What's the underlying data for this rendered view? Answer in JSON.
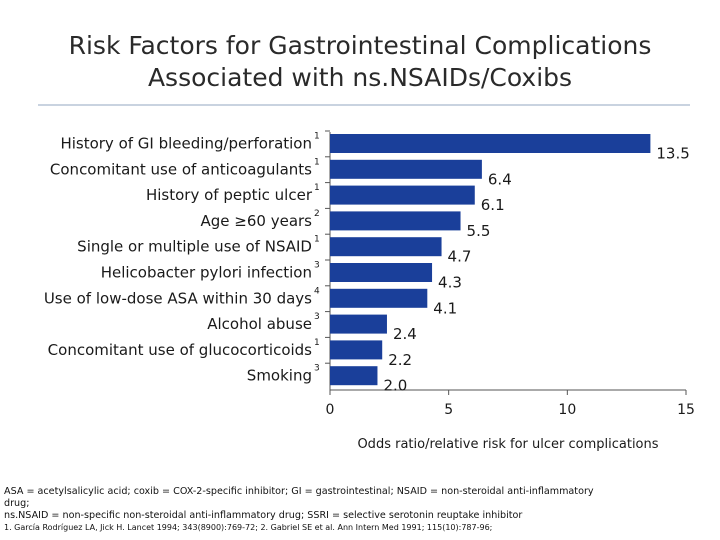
{
  "title": {
    "line1": "Risk Factors for Gastrointestinal Complications",
    "line2": "Associated with ns.NSAIDs/Coxibs"
  },
  "chart_data": {
    "type": "bar",
    "orientation": "horizontal",
    "categories": [
      "History of GI bleeding/perforation",
      "Concomitant use of anticoagulants",
      "History of peptic ulcer",
      "Age ≥60 years",
      "Single or multiple use of NSAID",
      "Helicobacter pylori infection",
      "Use of low-dose ASA within 30 days",
      "Alcohol abuse",
      "Concomitant use of glucocorticoids",
      "Smoking"
    ],
    "superscripts": [
      "1",
      "1",
      "1",
      "2",
      "1",
      "3",
      "4",
      "3",
      "1",
      "3"
    ],
    "values": [
      13.5,
      6.4,
      6.1,
      5.5,
      4.7,
      4.3,
      4.1,
      2.4,
      2.2,
      2.0
    ],
    "value_labels": [
      "13.5",
      "6.4",
      "6.1",
      "5.5",
      "4.7",
      "4.3",
      "4.1",
      "2.4",
      "2.2",
      "2.0"
    ],
    "xlabel": "Odds ratio/relative risk for ulcer complications",
    "xlim": [
      0,
      15
    ],
    "xticks": [
      "0",
      "5",
      "10",
      "15"
    ],
    "bar_color": "#1a3f9a",
    "grid": false,
    "legend": "none"
  },
  "footnote": {
    "line1": "ASA = acetylsalicylic acid; coxib = COX-2-specific inhibitor; GI = gastrointestinal; NSAID = non-steroidal anti-inflammatory",
    "line2": "drug;",
    "line3": "ns.NSAID = non-specific non-steroidal anti-inflammatory drug; SSRI = selective serotonin reuptake inhibitor",
    "line4": "1. García Rodríguez LA, Jick H. Lancet 1994; 343(8900):769-72; 2. Gabriel SE et al. Ann Intern Med 1991; 115(10):787-96;"
  }
}
